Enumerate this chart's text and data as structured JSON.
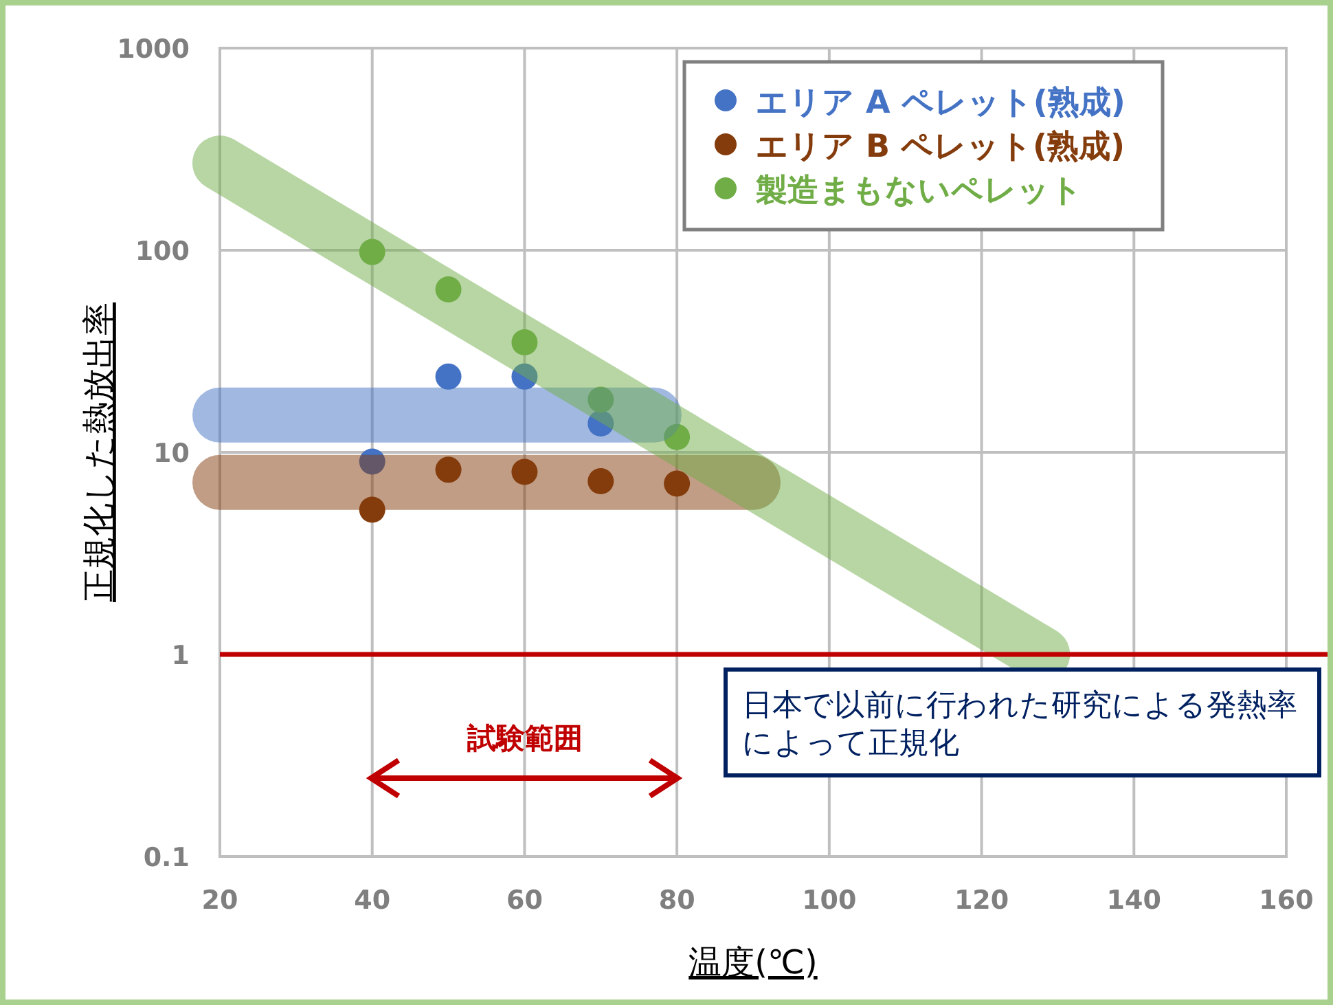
{
  "chart_data": {
    "type": "scatter",
    "xlabel": "温度(℃)",
    "ylabel": "正規化した熱放出率",
    "log": "y",
    "xlim": [
      20,
      160
    ],
    "xticks": [
      20,
      40,
      60,
      80,
      100,
      120,
      140,
      160
    ],
    "ylim": [
      0.1,
      1000
    ],
    "yticks": [
      0.1,
      1,
      10,
      100,
      1000
    ],
    "grid": true,
    "legend": "top right",
    "marker": "circle",
    "series": [
      {
        "name": "エリア A ペレット(熟成)",
        "color": "#4472c4",
        "x": [
          40,
          50,
          60,
          70
        ],
        "values": [
          9.0,
          23.7,
          23.7,
          13.9
        ]
      },
      {
        "name": "エリア B ペレット(熟成)",
        "color": "#843c0c",
        "x": [
          40,
          50,
          60,
          70,
          80
        ],
        "values": [
          5.2,
          8.2,
          8.0,
          7.2,
          7.0
        ]
      },
      {
        "name": "製造まもないペレット",
        "color": "#70ad47",
        "x": [
          40,
          50,
          60,
          70,
          80
        ],
        "values": [
          98,
          64,
          35,
          18.2,
          11.9
        ]
      },
      {
        "type": "line",
        "marker": "none",
        "color": "#4472c4",
        "x": [
          20,
          77
        ],
        "values": [
          15.3,
          15.3
        ]
      },
      {
        "type": "line",
        "marker": "none",
        "color": "#843c0c",
        "x": [
          20,
          90
        ],
        "values": [
          7.1,
          7.1
        ]
      },
      {
        "type": "line",
        "marker": "none",
        "color": "#70ad47",
        "x": [
          20,
          128
        ],
        "values": [
          270,
          1
        ]
      }
    ],
    "ref_lines": [
      {
        "axis": "y",
        "value": 1,
        "color": "#c00000"
      }
    ],
    "annotations": [
      "試験範囲",
      "日本で以前に行われた研究による発熱率によって正規化"
    ]
  }
}
